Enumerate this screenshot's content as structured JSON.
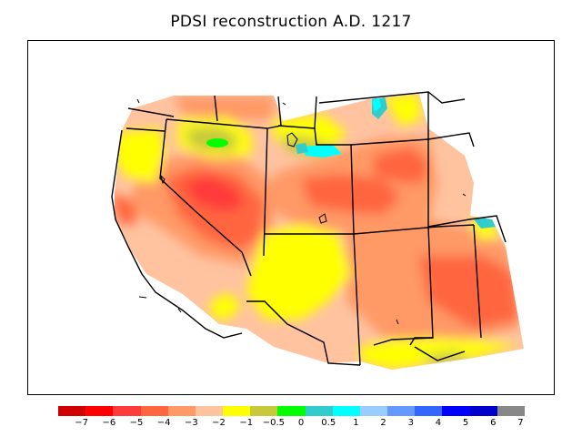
{
  "title": "PDSI reconstruction A.D. 1217",
  "legend": {
    "colors": [
      "#d10000",
      "#ff0000",
      "#ff3a3a",
      "#ff6640",
      "#ff9966",
      "#ffc3a0",
      "#ffff00",
      "#c8c83c",
      "#00ff00",
      "#33cccc",
      "#00ffff",
      "#99ccff",
      "#6699ff",
      "#3366ff",
      "#0000ff",
      "#0000cc",
      "#888888"
    ],
    "labels": [
      "−7",
      "−6",
      "−5",
      "−4",
      "−3",
      "−2",
      "−1",
      "−0.5",
      "0",
      "0.5",
      "1",
      "2",
      "3",
      "4",
      "5",
      "6",
      "7"
    ]
  }
}
